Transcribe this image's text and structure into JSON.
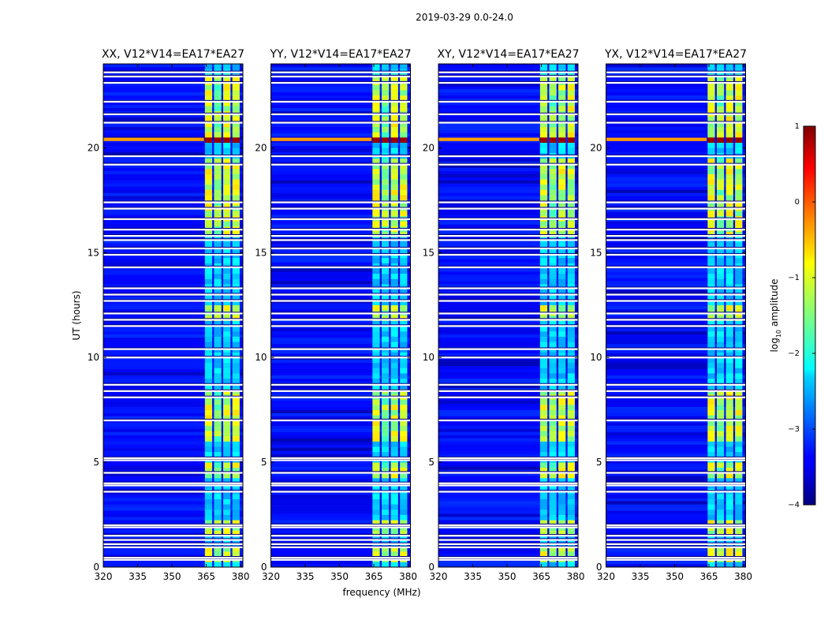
{
  "figure": {
    "suptitle": "2019-03-29 0.0-24.0",
    "xlabel": "frequency (MHz)",
    "ylabel": "UT (hours)"
  },
  "chart_data": {
    "type": "heatmap",
    "title": "2019-03-29 0.0-24.0",
    "xlabel": "frequency (MHz)",
    "ylabel": "UT (hours)",
    "xlim": [
      320,
      381
    ],
    "ylim": [
      0,
      24
    ],
    "xticks": [
      320,
      335,
      350,
      365,
      380
    ],
    "yticks": [
      0,
      5,
      10,
      15,
      20
    ],
    "panels": [
      {
        "title": "XX, V12*V14=EA17*EA27",
        "show_yticks": true
      },
      {
        "title": "YY, V12*V14=EA17*EA27",
        "show_yticks": true
      },
      {
        "title": "XY, V12*V14=EA17*EA27",
        "show_yticks": true
      },
      {
        "title": "YX, V12*V14=EA17*EA27",
        "show_yticks": true
      }
    ],
    "colorbar": {
      "label": "log10 amplitude",
      "label_main": "log",
      "label_sub": "10",
      "label_rest": " amplitude",
      "range": [
        -4,
        1
      ],
      "ticks": [
        -4,
        -3,
        -2,
        -1,
        0,
        1
      ],
      "tick_labels": [
        "−4",
        "−3",
        "−2",
        "−1",
        "0",
        "1"
      ]
    },
    "features": {
      "background_log_amplitude": -3.3,
      "rfi_band_mhz": [
        364,
        380
      ],
      "rfi_subband_edges_mhz": [
        364,
        368,
        372,
        376,
        380
      ],
      "rfi_time_ranges_ut": [
        [
          0.3,
          0.9
        ],
        [
          1.4,
          2.2
        ],
        [
          4.2,
          5.0
        ],
        [
          6.0,
          8.4
        ],
        [
          11.8,
          12.6
        ],
        [
          15.8,
          19.5
        ],
        [
          20.3,
          23.5
        ]
      ],
      "strong_rfi_ut": 20.4,
      "strong_rfi_log_amplitude": 0.9,
      "flagged_gaps_ut": [
        0.35,
        0.45,
        0.95,
        1.1,
        1.3,
        1.5,
        1.9,
        2.0,
        3.6,
        3.9,
        4.0,
        4.5,
        5.1,
        5.2,
        7.0,
        8.1,
        8.4,
        8.7,
        10.0,
        10.4,
        11.5,
        11.8,
        12.1,
        12.7,
        13.0,
        13.3,
        14.3,
        14.9,
        15.2,
        15.6,
        15.8,
        16.1,
        16.6,
        17.1,
        17.4,
        19.2,
        19.6,
        21.2,
        21.6,
        22.2,
        23.1,
        23.4,
        23.6
      ]
    }
  }
}
